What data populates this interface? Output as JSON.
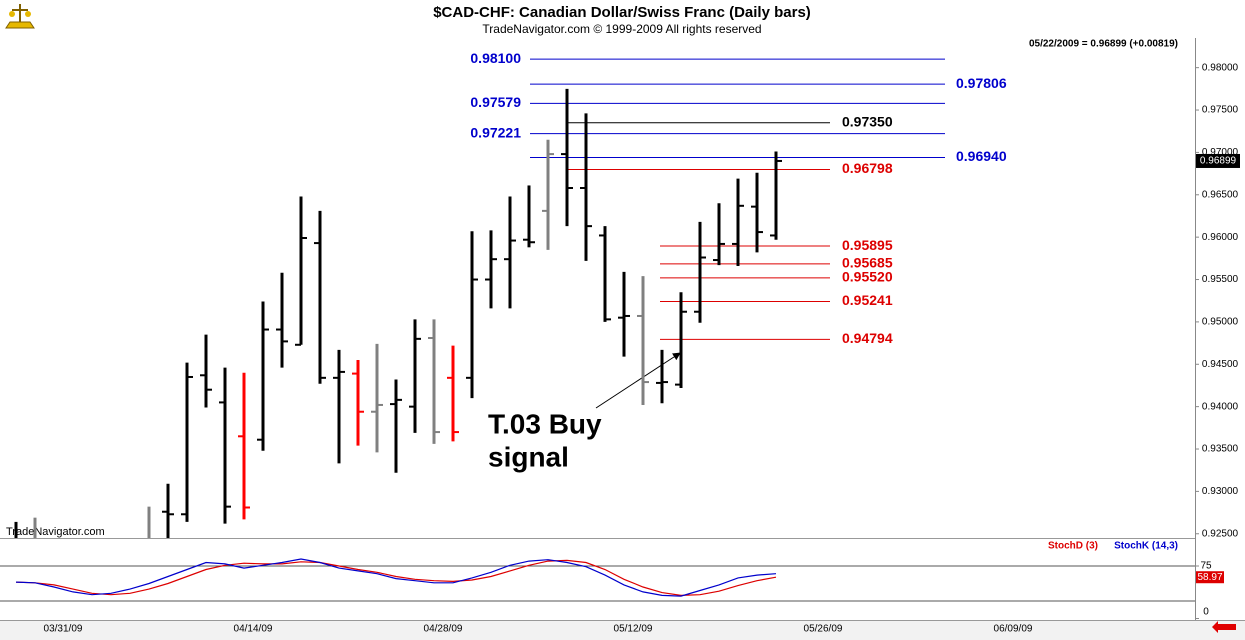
{
  "chart_data": [
    {
      "type": "ohlc",
      "title": "$CAD-CHF:  Canadian Dollar/Swiss Franc  (Daily bars)",
      "subtitle": "TradeNavigator.com © 1999-2009 All rights reserved",
      "info": "05/22/2009 = 0.96899 (+0.00819)",
      "watermark": "TradeNavigator.com",
      "categories": [
        null,
        null,
        "03/31/09",
        null,
        null,
        null,
        null,
        null,
        null,
        null,
        null,
        null,
        "04/14/09",
        null,
        null,
        null,
        null,
        null,
        null,
        null,
        null,
        null,
        "04/28/09",
        null,
        null,
        null,
        null,
        null,
        null,
        null,
        null,
        null,
        "05/12/09",
        null,
        null,
        null,
        null,
        null,
        null,
        null,
        null,
        null,
        "05/26/09",
        null,
        null,
        null,
        null,
        null,
        null,
        null,
        null,
        null,
        "06/09/09"
      ],
      "open": [
        null,
        null,
        null,
        null,
        null,
        null,
        null,
        null,
        0.9276,
        0.9273,
        0.9437,
        0.9405,
        0.9365,
        0.9361,
        0.9491,
        0.9473,
        0.9593,
        0.9434,
        0.9439,
        0.9394,
        0.9403,
        0.94,
        0.9481,
        0.9434,
        0.9434,
        0.955,
        0.9574,
        0.9597,
        0.9631,
        0.9698,
        0.9658,
        0.9602,
        0.9505,
        0.9507,
        0.9428,
        0.9426,
        0.9512,
        0.9573,
        0.9592,
        0.9636,
        0.9602,
        null,
        null,
        null,
        null,
        null,
        null,
        null,
        null,
        null,
        null,
        null,
        null
      ],
      "high": [
        0.9264,
        0.9269,
        null,
        null,
        null,
        null,
        null,
        0.9282,
        0.9309,
        0.9452,
        0.9485,
        0.9446,
        0.944,
        0.9524,
        0.9558,
        0.9648,
        0.9631,
        0.9467,
        0.9455,
        0.9474,
        0.9432,
        0.9503,
        0.9503,
        0.9472,
        0.9607,
        0.9608,
        0.9648,
        0.9661,
        0.9715,
        0.9775,
        0.9746,
        0.9613,
        0.9559,
        0.9554,
        0.9467,
        0.9535,
        0.9618,
        0.964,
        0.9669,
        0.9676,
        0.9701,
        null,
        null,
        null,
        null,
        null,
        null,
        null,
        null,
        null,
        null,
        null,
        null
      ],
      "low": [
        0.924,
        0.924,
        null,
        null,
        null,
        null,
        null,
        0.924,
        0.924,
        0.9264,
        0.9399,
        0.9262,
        0.9267,
        0.9348,
        0.9446,
        0.9473,
        0.9427,
        0.9333,
        0.9354,
        0.9346,
        0.9322,
        0.9369,
        0.9356,
        0.9359,
        0.941,
        0.9516,
        0.9516,
        0.9588,
        0.9585,
        0.9613,
        0.9572,
        0.95,
        0.9459,
        0.9402,
        0.9404,
        0.9422,
        0.9499,
        0.9567,
        0.9566,
        0.9582,
        0.9597,
        null,
        null,
        null,
        null,
        null,
        null,
        null,
        null,
        null,
        null,
        null,
        null
      ],
      "close": [
        null,
        null,
        null,
        null,
        null,
        null,
        null,
        null,
        0.9273,
        0.9435,
        0.942,
        0.9282,
        0.9281,
        0.9491,
        0.9477,
        0.9599,
        0.9434,
        0.9441,
        0.9394,
        0.9402,
        0.9408,
        0.948,
        0.937,
        0.937,
        0.955,
        0.9574,
        0.9596,
        0.9594,
        0.9698,
        0.9658,
        0.9613,
        0.9503,
        0.9507,
        0.9429,
        0.9429,
        0.9512,
        0.9576,
        0.9592,
        0.9637,
        0.9606,
        0.96899,
        null,
        null,
        null,
        null,
        null,
        null,
        null,
        null,
        null,
        null,
        null,
        null
      ],
      "bar_colors": [
        "#000000",
        "#808080",
        null,
        null,
        null,
        null,
        null,
        "#808080",
        "#000000",
        "#000000",
        "#000000",
        "#000000",
        "#ff0000",
        "#000000",
        "#000000",
        "#000000",
        "#000000",
        "#000000",
        "#ff0000",
        "#808080",
        "#000000",
        "#000000",
        "#808080",
        "#ff0000",
        "#000000",
        "#000000",
        "#000000",
        "#000000",
        "#808080",
        "#000000",
        "#000000",
        "#000000",
        "#000000",
        "#808080",
        "#000000",
        "#000000",
        "#000000",
        "#000000",
        "#000000",
        "#000000",
        "#000000",
        null,
        null,
        null,
        null,
        null,
        null,
        null,
        null,
        null,
        null,
        null,
        null
      ],
      "ylim": [
        0.9245,
        0.9835
      ],
      "yticks": [
        {
          "value": 0.925,
          "label": "0.92500"
        },
        {
          "value": 0.93,
          "label": "0.93000"
        },
        {
          "value": 0.935,
          "label": "0.93500"
        },
        {
          "value": 0.94,
          "label": "0.94000"
        },
        {
          "value": 0.945,
          "label": "0.94500"
        },
        {
          "value": 0.95,
          "label": "0.95000"
        },
        {
          "value": 0.955,
          "label": "0.95500"
        },
        {
          "value": 0.96,
          "label": "0.96000"
        },
        {
          "value": 0.965,
          "label": "0.96500"
        },
        {
          "value": 0.97,
          "label": "0.97000"
        },
        {
          "value": 0.975,
          "label": "0.97500"
        },
        {
          "value": 0.98,
          "label": "0.98000"
        }
      ],
      "levels": [
        {
          "color": "#0000cc",
          "lines": [
            {
              "value": 0.981,
              "label": "0.98100"
            },
            {
              "value": 0.97579,
              "label": "0.97579"
            },
            {
              "value": 0.97221,
              "label": "0.97221"
            }
          ]
        },
        {
          "color": "#0000cc",
          "lines": [
            {
              "value": 0.97806,
              "label": "0.97806"
            },
            {
              "value": 0.9694,
              "label": "0.96940"
            }
          ]
        },
        {
          "color": "#000000",
          "lines": [
            {
              "value": 0.9735,
              "label": "0.97350"
            }
          ]
        },
        {
          "color": "#dd0000",
          "lines": [
            {
              "value": 0.96798,
              "label": "0.96798"
            }
          ]
        },
        {
          "color": "#dd0000",
          "lines": [
            {
              "value": 0.95895,
              "label": "0.95895"
            },
            {
              "value": 0.95685,
              "label": "0.95685"
            },
            {
              "value": 0.9552,
              "label": "0.95520"
            },
            {
              "value": 0.95241,
              "label": "0.95241"
            },
            {
              "value": 0.94794,
              "label": "0.94794"
            }
          ]
        }
      ],
      "annotation": [
        "T.03 Buy",
        "signal"
      ]
    },
    {
      "type": "line",
      "series": [
        {
          "name": "StochD (3)",
          "color": "#dd0000",
          "values": [
            52,
            51,
            48,
            42,
            36,
            34,
            36,
            42,
            50,
            60,
            70,
            76,
            79,
            78,
            78,
            81,
            80,
            75,
            70,
            66,
            60,
            56,
            54,
            53,
            55,
            60,
            68,
            76,
            82,
            83,
            80,
            70,
            56,
            45,
            37,
            33,
            34,
            39,
            47,
            54,
            58.97,
            null,
            null,
            null,
            null,
            null,
            null,
            null,
            null,
            null,
            null,
            null,
            null
          ]
        },
        {
          "name": "StochK (14,3)",
          "color": "#0000cc",
          "values": [
            52,
            51,
            45,
            38,
            34,
            36,
            42,
            50,
            60,
            70,
            80,
            78,
            72,
            76,
            80,
            85,
            80,
            72,
            68,
            64,
            57,
            54,
            51,
            51,
            58,
            66,
            76,
            82,
            84,
            80,
            74,
            62,
            48,
            38,
            33,
            32,
            40,
            48,
            58,
            62,
            64,
            null,
            null,
            null,
            null,
            null,
            null,
            null,
            null,
            null,
            null,
            null,
            null
          ]
        }
      ],
      "ylim": [
        0,
        100
      ],
      "yticks": [
        0,
        75
      ],
      "guide_lines": [
        25,
        75
      ]
    }
  ]
}
